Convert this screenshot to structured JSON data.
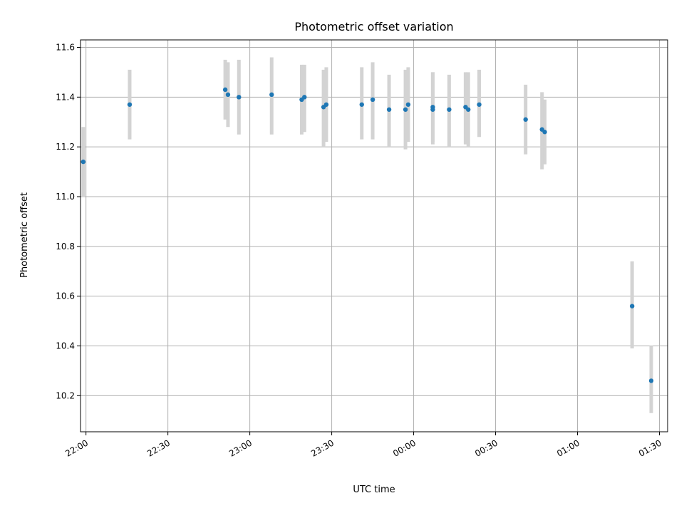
{
  "chart_data": {
    "type": "scatter",
    "title": "Photometric offset variation",
    "xlabel": "UTC time",
    "ylabel": "Photometric offset",
    "grid": true,
    "xlim": [
      "21:58",
      "01:33"
    ],
    "ylim": [
      10.055,
      11.63
    ],
    "x_ticks": [
      "22:00",
      "22:30",
      "23:00",
      "23:30",
      "00:00",
      "00:30",
      "01:00",
      "01:30"
    ],
    "y_ticks": [
      10.2,
      10.4,
      10.6,
      10.8,
      11.0,
      11.2,
      11.4,
      11.6
    ],
    "colors": {
      "points": "#1f77b4",
      "error_bars": "#d3d3d3",
      "grid": "#b0b0b0"
    },
    "series": [
      {
        "points": [
          {
            "x": "21:59",
            "y": 11.14,
            "ylow": 11.0,
            "yhigh": 11.28
          },
          {
            "x": "22:16",
            "y": 11.37,
            "ylow": 11.23,
            "yhigh": 11.51
          },
          {
            "x": "22:51",
            "y": 11.43,
            "ylow": 11.31,
            "yhigh": 11.55
          },
          {
            "x": "22:52",
            "y": 11.41,
            "ylow": 11.28,
            "yhigh": 11.54
          },
          {
            "x": "22:56",
            "y": 11.4,
            "ylow": 11.25,
            "yhigh": 11.55
          },
          {
            "x": "23:08",
            "y": 11.41,
            "ylow": 11.25,
            "yhigh": 11.56
          },
          {
            "x": "23:19",
            "y": 11.39,
            "ylow": 11.25,
            "yhigh": 11.53
          },
          {
            "x": "23:20",
            "y": 11.4,
            "ylow": 11.26,
            "yhigh": 11.53
          },
          {
            "x": "23:27",
            "y": 11.36,
            "ylow": 11.2,
            "yhigh": 11.51
          },
          {
            "x": "23:28",
            "y": 11.37,
            "ylow": 11.22,
            "yhigh": 11.52
          },
          {
            "x": "23:41",
            "y": 11.37,
            "ylow": 11.23,
            "yhigh": 11.52
          },
          {
            "x": "23:45",
            "y": 11.39,
            "ylow": 11.23,
            "yhigh": 11.54
          },
          {
            "x": "23:51",
            "y": 11.35,
            "ylow": 11.2,
            "yhigh": 11.49
          },
          {
            "x": "23:57",
            "y": 11.35,
            "ylow": 11.19,
            "yhigh": 11.51
          },
          {
            "x": "23:58",
            "y": 11.37,
            "ylow": 11.22,
            "yhigh": 11.52
          },
          {
            "x": "00:07",
            "y": 11.35,
            "ylow": 11.21,
            "yhigh": 11.5
          },
          {
            "x": "00:07",
            "y": 11.36,
            "ylow": 11.22,
            "yhigh": 11.5
          },
          {
            "x": "00:13",
            "y": 11.35,
            "ylow": 11.2,
            "yhigh": 11.49
          },
          {
            "x": "00:19",
            "y": 11.36,
            "ylow": 11.21,
            "yhigh": 11.5
          },
          {
            "x": "00:20",
            "y": 11.35,
            "ylow": 11.2,
            "yhigh": 11.5
          },
          {
            "x": "00:24",
            "y": 11.37,
            "ylow": 11.24,
            "yhigh": 11.51
          },
          {
            "x": "00:41",
            "y": 11.31,
            "ylow": 11.17,
            "yhigh": 11.45
          },
          {
            "x": "00:47",
            "y": 11.27,
            "ylow": 11.11,
            "yhigh": 11.42
          },
          {
            "x": "00:48",
            "y": 11.26,
            "ylow": 11.13,
            "yhigh": 11.39
          },
          {
            "x": "01:20",
            "y": 10.56,
            "ylow": 10.39,
            "yhigh": 10.74
          },
          {
            "x": "01:27",
            "y": 10.26,
            "ylow": 10.13,
            "yhigh": 10.4
          }
        ]
      }
    ]
  }
}
